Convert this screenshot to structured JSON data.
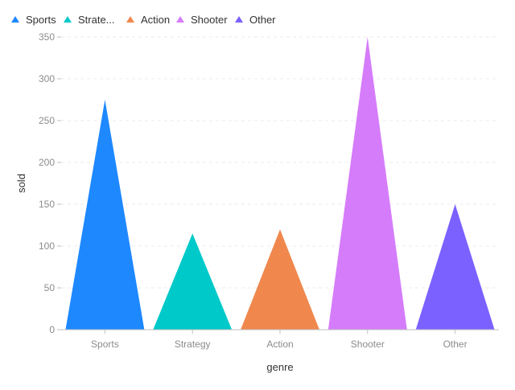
{
  "chart_data": {
    "type": "bar",
    "mark_shape": "triangle",
    "categories": [
      "Sports",
      "Strategy",
      "Action",
      "Shooter",
      "Other"
    ],
    "values": [
      275,
      115,
      120,
      350,
      150
    ],
    "colors": [
      "#1e88ff",
      "#00c9c9",
      "#f0884e",
      "#d57cfb",
      "#7b61ff"
    ],
    "legend": {
      "position": "top-left",
      "entries": [
        "Sports",
        "Strate...",
        "Action",
        "Shooter",
        "Other"
      ]
    },
    "xlabel": "genre",
    "ylabel": "sold",
    "ylim": [
      0,
      350
    ],
    "yticks": [
      0,
      50,
      100,
      150,
      200,
      250,
      300,
      350
    ],
    "grid": true
  }
}
